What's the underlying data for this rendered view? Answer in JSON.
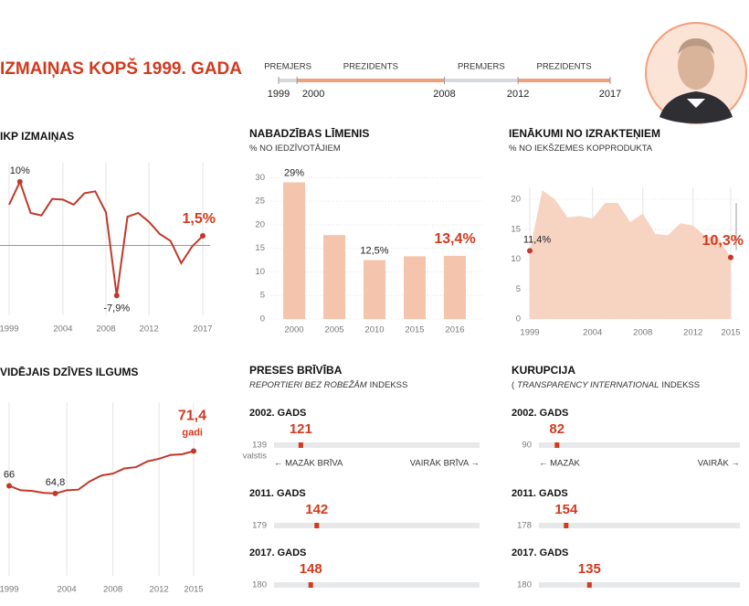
{
  "title": "IZMAIŅAS KOPŠ 1999. GADA",
  "timeline": {
    "periods": [
      {
        "label": "PREMJERS",
        "start": 1999,
        "end": 2000,
        "color": "#d5d8de"
      },
      {
        "label": "PREZIDENTS",
        "start": 2000,
        "end": 2008,
        "color": "#f2a07c"
      },
      {
        "label": "PREMJERS",
        "start": 2008,
        "end": 2012,
        "color": "#d5d8de"
      },
      {
        "label": "PREZIDENTS",
        "start": 2012,
        "end": 2017,
        "color": "#f2a07c"
      }
    ],
    "ticks": [
      1999,
      2000,
      2008,
      2012,
      2017
    ],
    "xlim": [
      1999,
      2017
    ]
  },
  "chart_data": [
    {
      "type": "line",
      "title": "IKP IZMAIŅAS",
      "x": [
        1999,
        2000,
        2001,
        2002,
        2003,
        2004,
        2005,
        2006,
        2007,
        2008,
        2009,
        2010,
        2011,
        2012,
        2013,
        2014,
        2015,
        2016,
        2017
      ],
      "values": [
        6.4,
        10,
        5.1,
        4.7,
        7.3,
        7.2,
        6.4,
        8.2,
        8.5,
        5.2,
        -7.9,
        4.5,
        5.1,
        3.7,
        1.8,
        0.7,
        -2.8,
        -0.2,
        1.5
      ],
      "value_labels": [
        null,
        "10%",
        null,
        null,
        null,
        null,
        null,
        null,
        null,
        null,
        "-7,9%",
        null,
        null,
        null,
        null,
        null,
        null,
        null,
        "1,5%"
      ],
      "xlim": [
        1999,
        2017
      ],
      "ylim": [
        -11,
        13
      ],
      "xticks": [
        1999,
        2004,
        2008,
        2012,
        2017
      ],
      "color": "#c0392b"
    },
    {
      "type": "bar",
      "title": "NABADZĪBAS LĪMENIS",
      "subtitle": [
        {
          "text": "% NO IEDZĪVOTĀJIEM",
          "italic": false
        }
      ],
      "categories": [
        "2000",
        "2005",
        "2010",
        "2015",
        "2016"
      ],
      "values": [
        29,
        17.8,
        12.5,
        13.3,
        13.4
      ],
      "value_labels": [
        "29%",
        null,
        "12,5%",
        null,
        "13,4%"
      ],
      "ylim": [
        0,
        32
      ],
      "yticks": [
        0,
        5,
        10,
        15,
        20,
        25,
        30
      ],
      "color": "#f5c4ad"
    },
    {
      "type": "area",
      "title": "IENĀKUMI NO IZRAKTEŅIEM",
      "subtitle": [
        {
          "text": "% NO IEKŠZEMES KOPPRODUKTA",
          "italic": false
        }
      ],
      "x": [
        1999,
        2000,
        2001,
        2002,
        2003,
        2004,
        2005,
        2006,
        2007,
        2008,
        2009,
        2010,
        2011,
        2012,
        2013,
        2014,
        2015
      ],
      "values": [
        11.4,
        21.5,
        20,
        17,
        17.2,
        16.8,
        19.4,
        19.4,
        16.2,
        17.6,
        14.2,
        14,
        16,
        15.6,
        13.8,
        13.6,
        10.3
      ],
      "value_labels": [
        "11,4%",
        null,
        null,
        null,
        null,
        null,
        null,
        null,
        null,
        null,
        null,
        null,
        null,
        null,
        null,
        null,
        "10,3%"
      ],
      "xlim": [
        1999,
        2015
      ],
      "ylim": [
        0,
        22
      ],
      "xticks": [
        1999,
        2004,
        2008,
        2012,
        2015
      ],
      "yticks": [
        0,
        5,
        10,
        15,
        20
      ],
      "color": "#f7d3c2"
    },
    {
      "type": "line",
      "title": "VIDĒJAIS DZĪVES ILGUMS",
      "x": [
        1999,
        2000,
        2001,
        2002,
        2003,
        2004,
        2005,
        2006,
        2007,
        2008,
        2009,
        2010,
        2011,
        2012,
        2013,
        2014,
        2015
      ],
      "values": [
        66,
        65.3,
        65.2,
        64.9,
        64.8,
        65.3,
        65.4,
        66.7,
        67.6,
        67.9,
        68.7,
        68.9,
        69.8,
        70.2,
        70.8,
        70.9,
        71.4
      ],
      "value_labels": [
        "66",
        null,
        null,
        null,
        "64,8",
        null,
        null,
        null,
        null,
        null,
        null,
        null,
        null,
        null,
        null,
        null,
        "71,4"
      ],
      "annotation": "gadi",
      "xlim": [
        1999,
        2015
      ],
      "ylim": [
        52,
        79
      ],
      "xticks": [
        1999,
        2004,
        2008,
        2012,
        2015
      ],
      "color": "#c0392b"
    },
    {
      "type": "rank",
      "title": "PRESES BRĪVĪBA",
      "subtitle": [
        {
          "text": "REPORTIERI BEZ ROBEŽĀM",
          "italic": true
        },
        {
          "text": "INDEKSS",
          "italic": false
        }
      ],
      "rows": [
        {
          "label": "2002. GADS",
          "value": 121,
          "xlim": [
            139,
            1
          ]
        },
        {
          "label": "2011. GADS",
          "value": 142,
          "xlim": [
            179,
            1
          ]
        },
        {
          "label": "2017. GADS",
          "value": 148,
          "xlim": [
            180,
            1
          ]
        }
      ],
      "note": "valstis",
      "legend": [
        "← MAZĀK BRĪVA",
        "VAIRĀK BRĪVA →"
      ],
      "color": "#d23a1e"
    },
    {
      "type": "rank",
      "title": "KURUPCIJA",
      "subtitle": [
        {
          "text": "(",
          "italic": false
        },
        {
          "text": "TRANSPARENCY INTERNATIONAL",
          "italic": true
        },
        {
          "text": "INDEKSS",
          "italic": false
        }
      ],
      "rows": [
        {
          "label": "2002. GADS",
          "value": 82,
          "xlim": [
            90,
            1
          ]
        },
        {
          "label": "2011. GADS",
          "value": 154,
          "xlim": [
            178,
            1
          ]
        },
        {
          "label": "2017. GADS",
          "value": 135,
          "xlim": [
            180,
            1
          ]
        }
      ],
      "legend": [
        "← MAZĀK",
        "VAIRĀK →"
      ],
      "color": "#d23a1e"
    }
  ]
}
